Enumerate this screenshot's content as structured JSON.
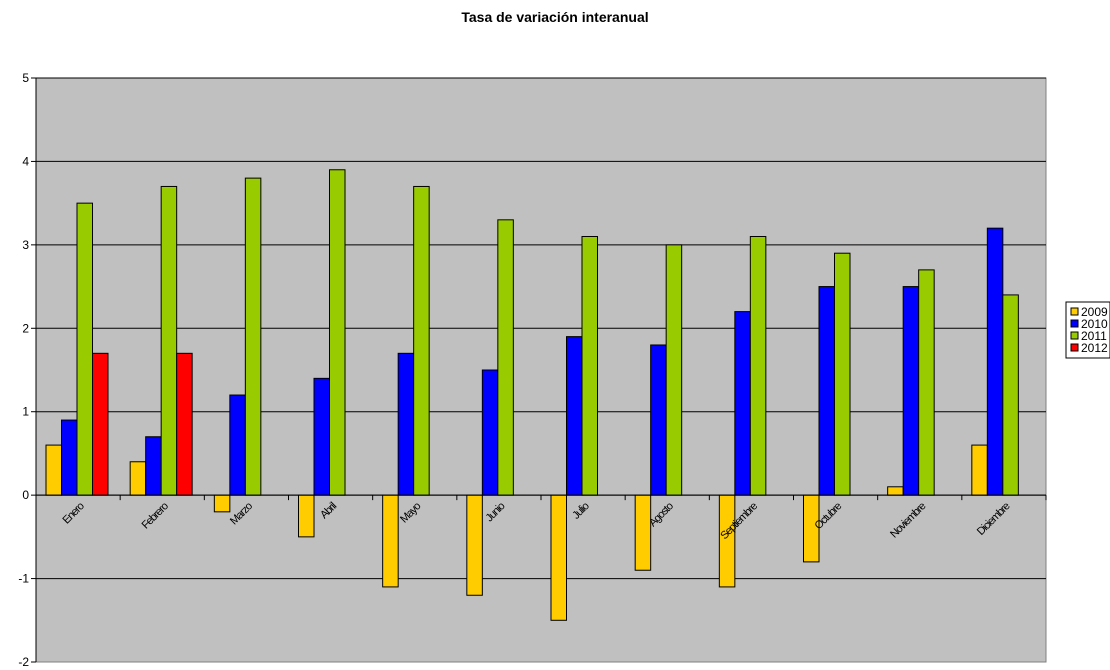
{
  "chart_data": {
    "type": "bar",
    "title": "Tasa de variación interanual",
    "xlabel": "",
    "ylabel": "",
    "ylim": [
      -2,
      5
    ],
    "yticks": [
      -2,
      -1,
      0,
      1,
      2,
      3,
      4,
      5
    ],
    "grid": true,
    "legend_position": "right",
    "plot_background": "#c0c0c0",
    "categories": [
      "Enero",
      "Febrero",
      "Marzo",
      "Abril",
      "Mayo",
      "Junio",
      "Julio",
      "Agosto",
      "Septiembre",
      "Octubre",
      "Noviembre",
      "Diciembre"
    ],
    "series": [
      {
        "name": "2009",
        "color": "#ffcc00",
        "values": [
          0.6,
          0.4,
          -0.2,
          -0.5,
          -1.1,
          -1.2,
          -1.5,
          -0.9,
          -1.1,
          -0.8,
          0.1,
          0.6
        ]
      },
      {
        "name": "2010",
        "color": "#0000ff",
        "values": [
          0.9,
          0.7,
          1.2,
          1.4,
          1.7,
          1.5,
          1.9,
          1.8,
          2.2,
          2.5,
          2.5,
          3.2
        ]
      },
      {
        "name": "2011",
        "color": "#99cc00",
        "values": [
          3.5,
          3.7,
          3.8,
          3.9,
          3.7,
          3.3,
          3.1,
          3.0,
          3.1,
          2.9,
          2.7,
          2.4
        ]
      },
      {
        "name": "2012",
        "color": "#ff0000",
        "values": [
          1.7,
          1.7,
          null,
          null,
          null,
          null,
          null,
          null,
          null,
          null,
          null,
          null
        ]
      }
    ]
  }
}
